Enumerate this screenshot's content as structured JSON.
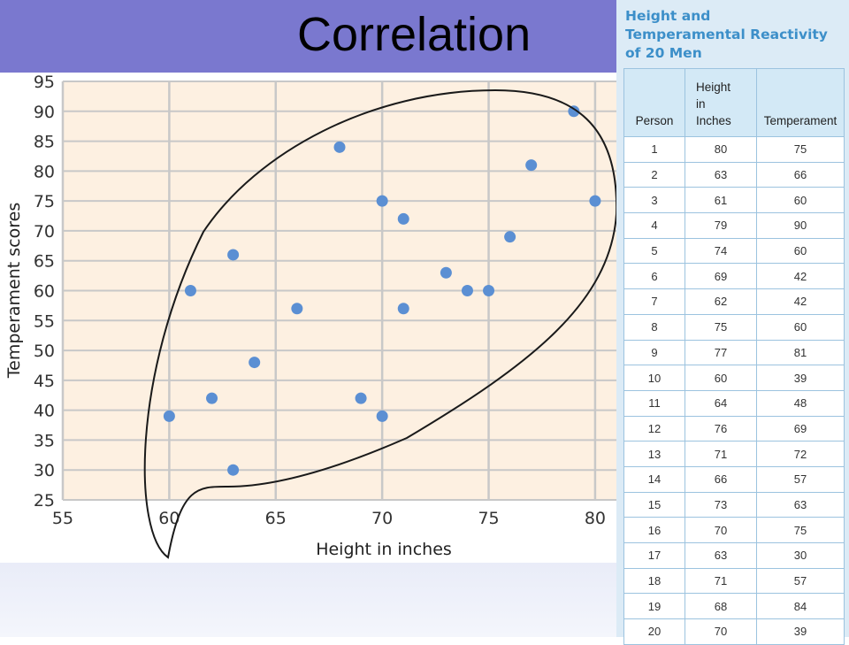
{
  "slide": {
    "title": "Correlation"
  },
  "chart_data": {
    "type": "scatter",
    "xlabel": "Height in inches",
    "ylabel": "Temperament scores",
    "xlim": [
      55,
      81
    ],
    "ylim": [
      25,
      95
    ],
    "xticks": [
      55,
      60,
      65,
      70,
      75,
      80
    ],
    "yticks": [
      25,
      30,
      35,
      40,
      45,
      50,
      55,
      60,
      65,
      70,
      75,
      80,
      85,
      90,
      95
    ],
    "grid": true,
    "point_color": "#5b8fd3",
    "plot_background": "#fdf0e1",
    "grid_color": "#c8c8c8",
    "annotation": "ellipse enclosing all points",
    "points": [
      {
        "x": 80,
        "y": 75
      },
      {
        "x": 63,
        "y": 66
      },
      {
        "x": 61,
        "y": 60
      },
      {
        "x": 79,
        "y": 90
      },
      {
        "x": 74,
        "y": 60
      },
      {
        "x": 69,
        "y": 42
      },
      {
        "x": 62,
        "y": 42
      },
      {
        "x": 75,
        "y": 60
      },
      {
        "x": 77,
        "y": 81
      },
      {
        "x": 60,
        "y": 39
      },
      {
        "x": 64,
        "y": 48
      },
      {
        "x": 76,
        "y": 69
      },
      {
        "x": 71,
        "y": 72
      },
      {
        "x": 66,
        "y": 57
      },
      {
        "x": 73,
        "y": 63
      },
      {
        "x": 70,
        "y": 75
      },
      {
        "x": 63,
        "y": 30
      },
      {
        "x": 71,
        "y": 57
      },
      {
        "x": 68,
        "y": 84
      },
      {
        "x": 70,
        "y": 39
      }
    ]
  },
  "table": {
    "title_lines": [
      "Height and",
      "Temperamental Reactivity",
      "of 20 Men"
    ],
    "headers": {
      "person": "Person",
      "height_lines": [
        "Height",
        "in",
        "Inches"
      ],
      "temperament": "Temperament"
    },
    "rows": [
      [
        "1",
        "80",
        "75"
      ],
      [
        "2",
        "63",
        "66"
      ],
      [
        "3",
        "61",
        "60"
      ],
      [
        "4",
        "79",
        "90"
      ],
      [
        "5",
        "74",
        "60"
      ],
      [
        "6",
        "69",
        "42"
      ],
      [
        "7",
        "62",
        "42"
      ],
      [
        "8",
        "75",
        "60"
      ],
      [
        "9",
        "77",
        "81"
      ],
      [
        "10",
        "60",
        "39"
      ],
      [
        "11",
        "64",
        "48"
      ],
      [
        "12",
        "76",
        "69"
      ],
      [
        "13",
        "71",
        "72"
      ],
      [
        "14",
        "66",
        "57"
      ],
      [
        "15",
        "73",
        "63"
      ],
      [
        "16",
        "70",
        "75"
      ],
      [
        "17",
        "63",
        "30"
      ],
      [
        "18",
        "71",
        "57"
      ],
      [
        "19",
        "68",
        "84"
      ],
      [
        "20",
        "70",
        "39"
      ]
    ]
  }
}
